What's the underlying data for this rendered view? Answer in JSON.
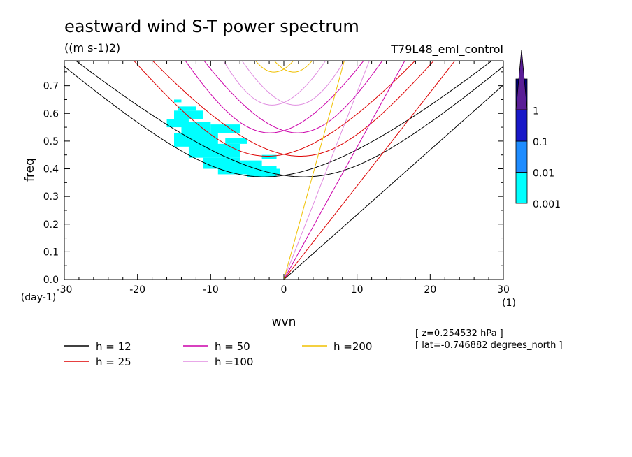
{
  "title": "eastward wind S-T power spectrum",
  "units": "((m s-1)2)",
  "run_label": "T79L48_eml_control",
  "notes": [
    "[ z=0.254532 hPa ]",
    "[ lat=-0.746882 degrees_north ]"
  ],
  "chart_data": {
    "type": "heatmap",
    "xlabel": "wvn",
    "ylabel": "freq",
    "x_unit": "(1)",
    "y_unit": "(day-1)",
    "xlim": [
      -30,
      30
    ],
    "ylim": [
      0,
      0.79
    ],
    "x_ticks": [
      -30,
      -20,
      -10,
      0,
      10,
      20,
      30
    ],
    "x_tick_labels": [
      "-30",
      "-20",
      "-10",
      "0",
      "10",
      "20",
      "30"
    ],
    "y_ticks": [
      0,
      0.1,
      0.2,
      0.3,
      0.4,
      0.5,
      0.6,
      0.7
    ],
    "y_tick_labels": [
      "0.0",
      "0.1",
      "0.2",
      "0.3",
      "0.4",
      "0.5",
      "0.6",
      "0.7"
    ],
    "colorbar": {
      "levels": [
        "0.001",
        "0.01",
        "0.1",
        "1"
      ],
      "colors": [
        "#00ffff",
        "#1e8cff",
        "#1818c8",
        "#000078",
        "#5a1e96"
      ]
    },
    "series": [
      {
        "name": "h = 12",
        "color": "#000000",
        "h": 12
      },
      {
        "name": "h = 25",
        "color": "#dd0000",
        "h": 25
      },
      {
        "name": "h = 50",
        "color": "#cc00aa",
        "h": 50
      },
      {
        "name": "h =100",
        "color": "#e08ce0",
        "h": 100
      },
      {
        "name": "h =200",
        "color": "#f0c000",
        "h": 200
      }
    ],
    "shaded_regions": [
      {
        "x": [
          -14.5,
          -12
        ],
        "y": [
          0.61,
          0.625
        ],
        "value": 0.001
      },
      {
        "x": [
          -15,
          -11
        ],
        "y": [
          0.58,
          0.61
        ],
        "value": 0.001
      },
      {
        "x": [
          -16,
          -13
        ],
        "y": [
          0.55,
          0.58
        ],
        "value": 0.001
      },
      {
        "x": [
          -14,
          -10
        ],
        "y": [
          0.52,
          0.57
        ],
        "value": 0.001
      },
      {
        "x": [
          -15,
          -9
        ],
        "y": [
          0.48,
          0.53
        ],
        "value": 0.001
      },
      {
        "x": [
          -13,
          -6
        ],
        "y": [
          0.44,
          0.49
        ],
        "value": 0.001
      },
      {
        "x": [
          -11,
          -6
        ],
        "y": [
          0.4,
          0.44
        ],
        "value": 0.001
      },
      {
        "x": [
          -9,
          -5
        ],
        "y": [
          0.38,
          0.41
        ],
        "value": 0.001
      },
      {
        "x": [
          -6,
          -3
        ],
        "y": [
          0.4,
          0.43
        ],
        "value": 0.001
      },
      {
        "x": [
          -5,
          -1
        ],
        "y": [
          0.37,
          0.41
        ],
        "value": 0.001
      },
      {
        "x": [
          -3,
          -0.5
        ],
        "y": [
          0.38,
          0.4
        ],
        "value": 0.001
      },
      {
        "x": [
          -10,
          -6
        ],
        "y": [
          0.53,
          0.56
        ],
        "value": 0.001
      },
      {
        "x": [
          -8,
          -5
        ],
        "y": [
          0.49,
          0.51
        ],
        "value": 0.001
      },
      {
        "x": [
          -3,
          -1
        ],
        "y": [
          0.435,
          0.45
        ],
        "value": 0.001
      },
      {
        "x": [
          -15,
          -14
        ],
        "y": [
          0.64,
          0.65
        ],
        "value": 0.001
      }
    ]
  }
}
